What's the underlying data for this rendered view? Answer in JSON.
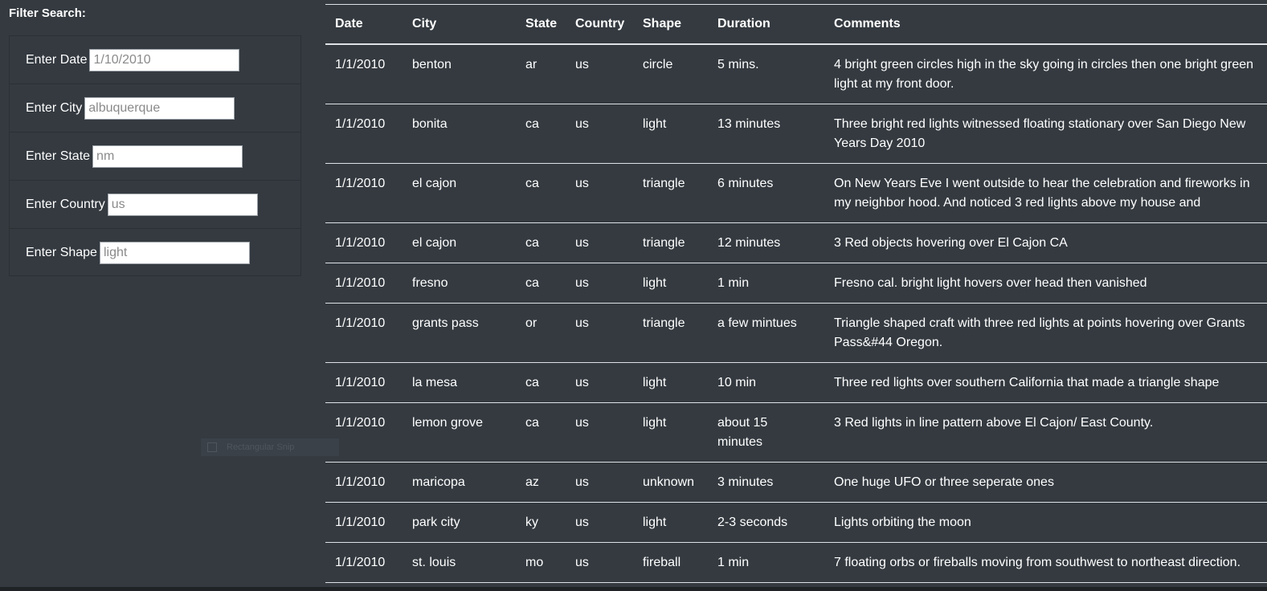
{
  "filter": {
    "title": "Filter Search:",
    "fields": [
      {
        "label": "Enter Date",
        "placeholder": "1/10/2010"
      },
      {
        "label": "Enter City",
        "placeholder": "albuquerque"
      },
      {
        "label": "Enter State",
        "placeholder": "nm"
      },
      {
        "label": "Enter Country",
        "placeholder": "us"
      },
      {
        "label": "Enter Shape",
        "placeholder": "light"
      }
    ]
  },
  "snip_ghost": {
    "label": "Rectangular Snip"
  },
  "table": {
    "headers": [
      "Date",
      "City",
      "State",
      "Country",
      "Shape",
      "Duration",
      "Comments"
    ],
    "rows": [
      [
        "1/1/2010",
        "benton",
        "ar",
        "us",
        "circle",
        "5 mins.",
        "4 bright green circles high in the sky going in circles then one bright green light at my front door."
      ],
      [
        "1/1/2010",
        "bonita",
        "ca",
        "us",
        "light",
        "13 minutes",
        "Three bright red lights witnessed floating stationary over San Diego New Years Day 2010"
      ],
      [
        "1/1/2010",
        "el cajon",
        "ca",
        "us",
        "triangle",
        "6 minutes",
        "On New Years Eve I went outside to hear the celebration and fireworks in my neighbor hood. And noticed 3 red lights above my house and"
      ],
      [
        "1/1/2010",
        "el cajon",
        "ca",
        "us",
        "triangle",
        "12 minutes",
        "3 Red objects hovering over El Cajon CA"
      ],
      [
        "1/1/2010",
        "fresno",
        "ca",
        "us",
        "light",
        "1 min",
        "Fresno cal. bright light hovers over head then vanished"
      ],
      [
        "1/1/2010",
        "grants pass",
        "or",
        "us",
        "triangle",
        "a few mintues",
        "Triangle shaped craft with three red lights at points hovering over Grants Pass&#44 Oregon."
      ],
      [
        "1/1/2010",
        "la mesa",
        "ca",
        "us",
        "light",
        "10 min",
        "Three red lights over southern California that made a triangle shape"
      ],
      [
        "1/1/2010",
        "lemon grove",
        "ca",
        "us",
        "light",
        "about 15 minutes",
        "3 Red lights in line pattern above El Cajon/ East County."
      ],
      [
        "1/1/2010",
        "maricopa",
        "az",
        "us",
        "unknown",
        "3 minutes",
        "One huge UFO or three seperate ones"
      ],
      [
        "1/1/2010",
        "park city",
        "ky",
        "us",
        "light",
        "2-3 seconds",
        "Lights orbiting the moon"
      ],
      [
        "1/1/2010",
        "st. louis",
        "mo",
        "us",
        "fireball",
        "1 min",
        "7 floating orbs or fireballs moving from southwest to northeast direction."
      ]
    ]
  }
}
